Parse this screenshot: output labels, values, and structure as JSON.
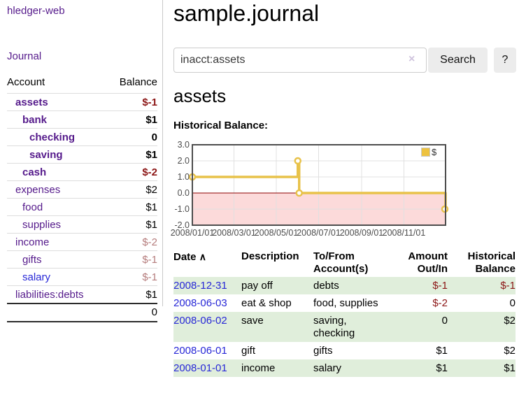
{
  "brand": "hledger-web",
  "nav": {
    "journal": "Journal"
  },
  "colors": {
    "link_visited": "#551a8b",
    "link_new": "#2828d7",
    "negative_strong": "#8c1616",
    "negative_dim": "#b57c7c",
    "stripe_green": "#e0eedb",
    "chart_line": "#E8C24A"
  },
  "sidebar": {
    "account_header": "Account",
    "balance_header": "Balance",
    "accounts": [
      {
        "name": "assets",
        "balance": "$-1",
        "level": 1,
        "bold": true,
        "balance_style": "neg-strong"
      },
      {
        "name": "bank",
        "balance": "$1",
        "level": 2,
        "bold": true,
        "balance_style": ""
      },
      {
        "name": "checking",
        "balance": "0",
        "level": 3,
        "bold": true,
        "balance_style": ""
      },
      {
        "name": "saving",
        "balance": "$1",
        "level": 3,
        "bold": true,
        "balance_style": ""
      },
      {
        "name": "cash",
        "balance": "$-2",
        "level": 2,
        "bold": true,
        "balance_style": "neg-strong"
      },
      {
        "name": "expenses",
        "balance": "$2",
        "level": 1,
        "bold": false,
        "balance_style": ""
      },
      {
        "name": "food",
        "balance": "$1",
        "level": 2,
        "bold": false,
        "balance_style": ""
      },
      {
        "name": "supplies",
        "balance": "$1",
        "level": 2,
        "bold": false,
        "balance_style": ""
      },
      {
        "name": "income",
        "balance": "$-2",
        "level": 1,
        "bold": false,
        "balance_style": "neg-dim"
      },
      {
        "name": "gifts",
        "balance": "$-1",
        "level": 2,
        "bold": false,
        "balance_style": "neg-dim"
      },
      {
        "name": "salary",
        "balance": "$-1",
        "level": 2,
        "bold": false,
        "balance_style": "neg-dim",
        "link_state": "new"
      },
      {
        "name": "liabilities:debts",
        "balance": "$1",
        "level": 1,
        "bold": false,
        "balance_style": ""
      }
    ],
    "total": "0"
  },
  "header": {
    "title": "sample.journal"
  },
  "search": {
    "value": "inacct:assets",
    "clear_icon": "×",
    "search_label": "Search",
    "help_label": "?"
  },
  "account_page": {
    "heading": "assets",
    "chart_label": "Historical Balance:"
  },
  "chart_data": {
    "type": "line",
    "title": "Historical Balance",
    "legend": [
      {
        "label": "$",
        "color": "#EDC240"
      }
    ],
    "series": [
      {
        "name": "$",
        "color": "#E8C24A",
        "step": true,
        "points": [
          {
            "date": "2008-01-01",
            "value": 1
          },
          {
            "date": "2008-06-01",
            "value": 2
          },
          {
            "date": "2008-06-03",
            "value": 0
          },
          {
            "date": "2008-12-31",
            "value": -1
          }
        ]
      }
    ],
    "x_range": [
      "2008-01-01",
      "2008-12-31"
    ],
    "y_lim": [
      -2,
      3
    ],
    "y_ticks": [
      "3.0",
      "2.0",
      "1.0",
      "0.0",
      "-1.0",
      "-2.0"
    ],
    "x_ticks": [
      {
        "label": "2008/01/01",
        "date": "2008-01-01"
      },
      {
        "label": "2008/03/01",
        "date": "2008-03-01"
      },
      {
        "label": "2008/05/01",
        "date": "2008-05-01"
      },
      {
        "label": "2008/07/01",
        "date": "2008-07-01"
      },
      {
        "label": "2008/09/01",
        "date": "2008-09-01"
      },
      {
        "label": "2008/11/01",
        "date": "2008-11-01"
      }
    ],
    "grid": true,
    "legend_position": "top-right",
    "negative_region_color": "#fcdada",
    "zero_line_color": "#8e0000",
    "grid_color": "#e0e0e0",
    "border_color": "#4d4d4d"
  },
  "register": {
    "sort_indicator": "∧",
    "columns": [
      {
        "line1": "Date",
        "line2": "",
        "align": "left"
      },
      {
        "line1": "Description",
        "line2": "",
        "align": "left"
      },
      {
        "line1": "To/From",
        "line2": "Account(s)",
        "align": "left"
      },
      {
        "line1": "Amount",
        "line2": "Out/In",
        "align": "right"
      },
      {
        "line1": "Historical",
        "line2": "Balance",
        "align": "right"
      }
    ],
    "rows": [
      {
        "date": "2008-12-31",
        "description": "pay off",
        "accounts": "debts",
        "amount": "$-1",
        "balance": "$-1",
        "amount_style": "neg",
        "balance_style": "neg",
        "striped": true
      },
      {
        "date": "2008-06-03",
        "description": "eat & shop",
        "accounts": "food, supplies",
        "amount": "$-2",
        "balance": "0",
        "amount_style": "neg",
        "balance_style": "",
        "striped": false
      },
      {
        "date": "2008-06-02",
        "description": "save",
        "accounts": "saving,\nchecking",
        "amount": "0",
        "balance": "$2",
        "amount_style": "",
        "balance_style": "",
        "striped": true
      },
      {
        "date": "2008-06-01",
        "description": "gift",
        "accounts": "gifts",
        "amount": "$1",
        "balance": "$2",
        "amount_style": "",
        "balance_style": "",
        "striped": false
      },
      {
        "date": "2008-01-01",
        "description": "income",
        "accounts": "salary",
        "amount": "$1",
        "balance": "$1",
        "amount_style": "",
        "balance_style": "",
        "striped": true
      }
    ]
  }
}
